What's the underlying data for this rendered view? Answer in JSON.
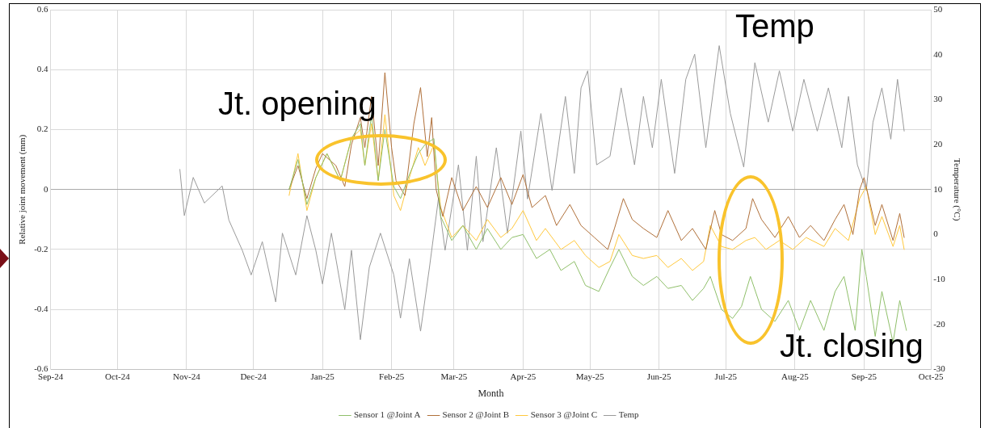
{
  "chart_data": {
    "type": "line",
    "xlabel": "Month",
    "ylabel": "Relative joint movement (mm)",
    "y2label": "Temperature (°C)",
    "xlim": [
      "2024-09-01",
      "2025-10-01"
    ],
    "xticks": [
      {
        "value": "2024-09-01",
        "label": "Sep-24"
      },
      {
        "value": "2024-10-01",
        "label": "Oct-24"
      },
      {
        "value": "2024-11-01",
        "label": "Nov-24"
      },
      {
        "value": "2024-12-01",
        "label": "Dec-24"
      },
      {
        "value": "2025-01-01",
        "label": "Jan-25"
      },
      {
        "value": "2025-02-01",
        "label": "Feb-25"
      },
      {
        "value": "2025-03-01",
        "label": "Mar-25"
      },
      {
        "value": "2025-04-01",
        "label": "Apr-25"
      },
      {
        "value": "2025-05-01",
        "label": "May-25"
      },
      {
        "value": "2025-06-01",
        "label": "Jun-25"
      },
      {
        "value": "2025-07-01",
        "label": "Jul-25"
      },
      {
        "value": "2025-08-01",
        "label": "Aug-25"
      },
      {
        "value": "2025-09-01",
        "label": "Sep-25"
      },
      {
        "value": "2025-10-01",
        "label": "Oct-25"
      }
    ],
    "ylim": [
      -0.6,
      0.6
    ],
    "yticks": [
      -0.6,
      -0.4,
      -0.2,
      0,
      0.2,
      0.4,
      0.6
    ],
    "y2lim": [
      -30,
      50
    ],
    "y2ticks": [
      -30,
      -20,
      -10,
      0,
      10,
      20,
      30,
      40,
      50
    ],
    "grid": true,
    "legend": "bottom",
    "marker": "none",
    "line_style": "solid",
    "annotations": [
      "Jt. opening",
      "Temp",
      "Jt. closing"
    ],
    "series": [
      {
        "name": "Sensor 1 @Joint A",
        "color": "#8fbf6a",
        "x": [
          "2024-12-17",
          "2024-12-21",
          "2024-12-25",
          "2024-12-29",
          "2025-01-03",
          "2025-01-09",
          "2025-01-14",
          "2025-01-18",
          "2025-01-20",
          "2025-01-23",
          "2025-01-26",
          "2025-01-29",
          "2025-02-02",
          "2025-02-05",
          "2025-02-09",
          "2025-02-13",
          "2025-02-16",
          "2025-02-20",
          "2025-02-23",
          "2025-02-28",
          "2025-03-05",
          "2025-03-11",
          "2025-03-16",
          "2025-03-22",
          "2025-03-27",
          "2025-04-01",
          "2025-04-07",
          "2025-04-13",
          "2025-04-18",
          "2025-04-24",
          "2025-04-29",
          "2025-05-05",
          "2025-05-10",
          "2025-05-14",
          "2025-05-20",
          "2025-05-25",
          "2025-05-31",
          "2025-06-05",
          "2025-06-11",
          "2025-06-16",
          "2025-06-21",
          "2025-06-24",
          "2025-06-29",
          "2025-07-04",
          "2025-07-08",
          "2025-07-12",
          "2025-07-17",
          "2025-07-23",
          "2025-07-29",
          "2025-08-03",
          "2025-08-08",
          "2025-08-14",
          "2025-08-19",
          "2025-08-23",
          "2025-08-28",
          "2025-08-31",
          "2025-09-02",
          "2025-09-06",
          "2025-09-09",
          "2025-09-14",
          "2025-09-17",
          "2025-09-20"
        ],
        "values": [
          0,
          0.1,
          -0.05,
          0.04,
          0.12,
          0.03,
          0.17,
          0.22,
          0.08,
          0.25,
          0.03,
          0.2,
          0.01,
          -0.03,
          0.05,
          0.12,
          0.15,
          0.17,
          -0.09,
          -0.17,
          -0.12,
          -0.2,
          -0.13,
          -0.2,
          -0.16,
          -0.15,
          -0.23,
          -0.2,
          -0.27,
          -0.24,
          -0.32,
          -0.34,
          -0.26,
          -0.2,
          -0.29,
          -0.32,
          -0.29,
          -0.33,
          -0.32,
          -0.37,
          -0.33,
          -0.29,
          -0.4,
          -0.43,
          -0.39,
          -0.29,
          -0.4,
          -0.44,
          -0.37,
          -0.47,
          -0.37,
          -0.47,
          -0.34,
          -0.29,
          -0.47,
          -0.2,
          -0.29,
          -0.49,
          -0.34,
          -0.51,
          -0.37,
          -0.47
        ]
      },
      {
        "name": "Sensor 2 @Joint B",
        "color": "#b0703a",
        "x": [
          "2024-12-17",
          "2024-12-21",
          "2024-12-25",
          "2024-12-29",
          "2025-01-01",
          "2025-01-07",
          "2025-01-11",
          "2025-01-14",
          "2025-01-18",
          "2025-01-20",
          "2025-01-23",
          "2025-01-26",
          "2025-01-29",
          "2025-02-01",
          "2025-02-03",
          "2025-02-07",
          "2025-02-11",
          "2025-02-14",
          "2025-02-17",
          "2025-02-19",
          "2025-02-21",
          "2025-02-24",
          "2025-02-28",
          "2025-03-05",
          "2025-03-11",
          "2025-03-16",
          "2025-03-22",
          "2025-03-27",
          "2025-04-01",
          "2025-04-05",
          "2025-04-11",
          "2025-04-16",
          "2025-04-22",
          "2025-04-27",
          "2025-05-03",
          "2025-05-09",
          "2025-05-12",
          "2025-05-16",
          "2025-05-20",
          "2025-05-25",
          "2025-05-31",
          "2025-06-05",
          "2025-06-11",
          "2025-06-16",
          "2025-06-22",
          "2025-06-26",
          "2025-06-29",
          "2025-07-04",
          "2025-07-10",
          "2025-07-13",
          "2025-07-17",
          "2025-07-23",
          "2025-07-29",
          "2025-08-03",
          "2025-08-08",
          "2025-08-14",
          "2025-08-19",
          "2025-08-23",
          "2025-08-27",
          "2025-08-30",
          "2025-09-01",
          "2025-09-06",
          "2025-09-09",
          "2025-09-14",
          "2025-09-17",
          "2025-09-19"
        ],
        "values": [
          0,
          0.08,
          -0.03,
          0.07,
          0.12,
          0.08,
          0.01,
          0.15,
          0.24,
          0.14,
          0.31,
          0.08,
          0.39,
          0.14,
          0.03,
          -0.02,
          0.22,
          0.34,
          0.11,
          0.24,
          0,
          -0.09,
          0.04,
          -0.07,
          0.01,
          -0.06,
          0.04,
          -0.05,
          0.05,
          -0.06,
          -0.02,
          -0.12,
          -0.05,
          -0.12,
          -0.16,
          -0.2,
          -0.13,
          -0.03,
          -0.1,
          -0.13,
          -0.16,
          -0.07,
          -0.17,
          -0.13,
          -0.2,
          -0.07,
          -0.15,
          -0.17,
          -0.13,
          -0.03,
          -0.1,
          -0.16,
          -0.09,
          -0.16,
          -0.12,
          -0.17,
          -0.1,
          -0.05,
          -0.15,
          0,
          0.04,
          -0.12,
          -0.05,
          -0.17,
          -0.08,
          -0.16
        ]
      },
      {
        "name": "Sensor 3 @Joint C",
        "color": "#ffc83d",
        "x": [
          "2024-12-17",
          "2024-12-21",
          "2024-12-25",
          "2024-12-29",
          "2025-01-03",
          "2025-01-09",
          "2025-01-14",
          "2025-01-18",
          "2025-01-20",
          "2025-01-23",
          "2025-01-26",
          "2025-01-29",
          "2025-02-02",
          "2025-02-05",
          "2025-02-09",
          "2025-02-13",
          "2025-02-16",
          "2025-02-20",
          "2025-02-23",
          "2025-02-28",
          "2025-03-05",
          "2025-03-11",
          "2025-03-16",
          "2025-03-22",
          "2025-03-27",
          "2025-04-01",
          "2025-04-07",
          "2025-04-11",
          "2025-04-18",
          "2025-04-24",
          "2025-04-29",
          "2025-05-05",
          "2025-05-10",
          "2025-05-14",
          "2025-05-20",
          "2025-05-25",
          "2025-05-31",
          "2025-06-05",
          "2025-06-11",
          "2025-06-16",
          "2025-06-21",
          "2025-06-24",
          "2025-06-29",
          "2025-07-04",
          "2025-07-10",
          "2025-07-14",
          "2025-07-19",
          "2025-07-25",
          "2025-07-31",
          "2025-08-06",
          "2025-08-14",
          "2025-08-19",
          "2025-08-25",
          "2025-08-30",
          "2025-09-02",
          "2025-09-06",
          "2025-09-09",
          "2025-09-14",
          "2025-09-17",
          "2025-09-19"
        ],
        "values": [
          -0.02,
          0.12,
          -0.07,
          0.04,
          0.12,
          0.03,
          0.17,
          0.2,
          0.08,
          0.22,
          0.03,
          0.25,
          -0.02,
          -0.07,
          0.04,
          0.14,
          0.08,
          0.15,
          -0.06,
          -0.16,
          -0.12,
          -0.17,
          -0.1,
          -0.16,
          -0.13,
          -0.07,
          -0.17,
          -0.13,
          -0.2,
          -0.17,
          -0.22,
          -0.26,
          -0.24,
          -0.15,
          -0.22,
          -0.23,
          -0.22,
          -0.26,
          -0.23,
          -0.27,
          -0.24,
          -0.12,
          -0.19,
          -0.2,
          -0.17,
          -0.16,
          -0.2,
          -0.17,
          -0.2,
          -0.16,
          -0.19,
          -0.13,
          -0.17,
          -0.03,
          0.01,
          -0.15,
          -0.09,
          -0.19,
          -0.12,
          -0.2
        ]
      },
      {
        "name": "Temp",
        "color": "#9a9a9a",
        "axis": "y2",
        "x": [
          "2024-10-29",
          "2024-10-31",
          "2024-11-04",
          "2024-11-09",
          "2024-11-17",
          "2024-11-20",
          "2024-11-26",
          "2024-11-30",
          "2024-12-05",
          "2024-12-11",
          "2024-12-14",
          "2024-12-20",
          "2024-12-25",
          "2024-12-29",
          "2025-01-01",
          "2025-01-05",
          "2025-01-11",
          "2025-01-14",
          "2025-01-18",
          "2025-01-22",
          "2025-01-27",
          "2025-02-02",
          "2025-02-05",
          "2025-02-09",
          "2025-02-14",
          "2025-02-18",
          "2025-02-22",
          "2025-02-25",
          "2025-03-03",
          "2025-03-07",
          "2025-03-11",
          "2025-03-14",
          "2025-03-20",
          "2025-03-25",
          "2025-03-31",
          "2025-04-03",
          "2025-04-09",
          "2025-04-14",
          "2025-04-20",
          "2025-04-24",
          "2025-04-27",
          "2025-04-30",
          "2025-05-04",
          "2025-05-10",
          "2025-05-15",
          "2025-05-21",
          "2025-05-25",
          "2025-05-29",
          "2025-06-02",
          "2025-06-08",
          "2025-06-13",
          "2025-06-17",
          "2025-06-22",
          "2025-06-28",
          "2025-07-03",
          "2025-07-09",
          "2025-07-14",
          "2025-07-20",
          "2025-07-25",
          "2025-07-31",
          "2025-08-05",
          "2025-08-11",
          "2025-08-16",
          "2025-08-22",
          "2025-08-25",
          "2025-08-29",
          "2025-09-02",
          "2025-09-05",
          "2025-09-09",
          "2025-09-13",
          "2025-09-16",
          "2025-09-19"
        ],
        "values": [
          14.5,
          4.2,
          12.7,
          7,
          10.8,
          3.2,
          -3.5,
          -9,
          -1.6,
          -15,
          0.3,
          -9,
          4.2,
          -3.5,
          -11,
          0.3,
          -16.7,
          -3.5,
          -23.4,
          -7.3,
          0.3,
          -9,
          -18.6,
          -5.4,
          -21.5,
          -7.3,
          7.9,
          -3.5,
          15.5,
          -3.5,
          17.4,
          -1.6,
          19.3,
          0.3,
          23,
          7.9,
          26.9,
          9.8,
          30.7,
          13.6,
          32.6,
          36.4,
          15.5,
          17.4,
          32.6,
          15.5,
          30.7,
          19.3,
          34.5,
          13.6,
          34.5,
          40.1,
          19.3,
          42,
          26.9,
          15,
          38.2,
          25,
          36.4,
          23,
          34.5,
          23,
          32.6,
          19.3,
          30.7,
          15.5,
          9.8,
          25,
          32.6,
          21.2,
          34.5,
          23
        ]
      }
    ]
  }
}
